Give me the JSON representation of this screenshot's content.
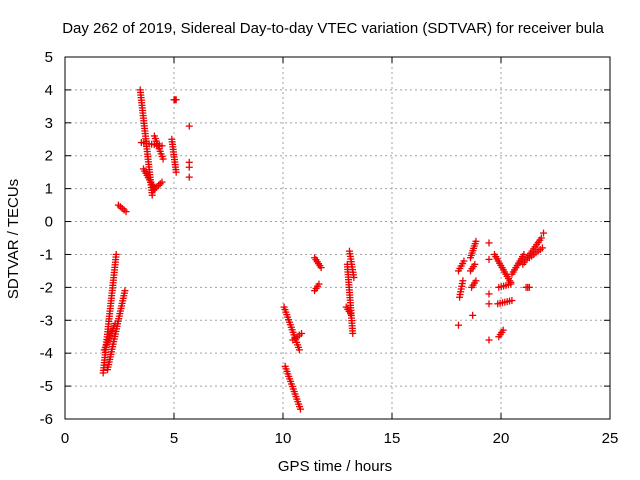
{
  "chart_data": {
    "type": "scatter",
    "title": "Day 262 of 2019, Sidereal Day-to-day VTEC variation (SDTVAR) for receiver bula",
    "xlabel": "GPS time / hours",
    "ylabel": "SDTVAR / TECUs",
    "xlim": [
      0,
      25
    ],
    "ylim": [
      -6,
      5
    ],
    "xticks": [
      0,
      5,
      10,
      15,
      20,
      25
    ],
    "yticks": [
      -6,
      -5,
      -4,
      -3,
      -2,
      -1,
      0,
      1,
      2,
      3,
      4,
      5
    ],
    "xtick_labels": [
      "0",
      "5",
      "10",
      "15",
      "20",
      "25"
    ],
    "ytick_labels": [
      "-6",
      "-5",
      "-4",
      "-3",
      "-2",
      "-1",
      "0",
      "1",
      "2",
      "3",
      "4",
      "5"
    ],
    "grid": true,
    "marker": "plus",
    "series": [
      {
        "name": "SDTVAR",
        "color": "#ee0000",
        "segments": [
          {
            "x": [
              1.75,
              2.35
            ],
            "y": [
              -4.6,
              -1.0
            ]
          },
          {
            "x": [
              1.95,
              2.75
            ],
            "y": [
              -4.5,
              -2.1
            ]
          },
          {
            "x": [
              1.8,
              2.3
            ],
            "y": [
              -3.9,
              -3.1
            ]
          },
          {
            "x": [
              2.45,
              2.8
            ],
            "y": [
              0.5,
              0.3
            ]
          },
          {
            "x": [
              3.45,
              4.0
            ],
            "y": [
              4.0,
              0.8
            ]
          },
          {
            "x": [
              3.5,
              4.45
            ],
            "y": [
              2.4,
              2.3
            ]
          },
          {
            "x": [
              3.6,
              4.1
            ],
            "y": [
              1.6,
              1.0
            ]
          },
          {
            "x": [
              4.05,
              4.45
            ],
            "y": [
              0.95,
              1.2
            ]
          },
          {
            "x": [
              4.1,
              4.5
            ],
            "y": [
              2.6,
              1.9
            ]
          },
          {
            "x": [
              4.9,
              5.1
            ],
            "y": [
              2.5,
              1.5
            ]
          },
          {
            "x": [
              5.0,
              5.1
            ],
            "y": [
              3.7,
              3.7
            ]
          },
          {
            "x": [
              10.05,
              10.75
            ],
            "y": [
              -2.6,
              -3.9
            ]
          },
          {
            "x": [
              10.1,
              10.8
            ],
            "y": [
              -4.4,
              -5.7
            ]
          },
          {
            "x": [
              10.45,
              10.85
            ],
            "y": [
              -3.6,
              -3.4
            ]
          },
          {
            "x": [
              11.45,
              11.75
            ],
            "y": [
              -1.1,
              -1.4
            ]
          },
          {
            "x": [
              11.45,
              11.65
            ],
            "y": [
              -2.1,
              -1.9
            ]
          },
          {
            "x": [
              12.95,
              13.2
            ],
            "y": [
              -1.3,
              -3.4
            ]
          },
          {
            "x": [
              13.05,
              13.25
            ],
            "y": [
              -0.9,
              -1.7
            ]
          },
          {
            "x": [
              12.9,
              13.1
            ],
            "y": [
              -2.6,
              -2.8
            ]
          },
          {
            "x": [
              18.05,
              18.3
            ],
            "y": [
              -1.5,
              -1.2
            ]
          },
          {
            "x": [
              18.1,
              18.25
            ],
            "y": [
              -2.3,
              -1.8
            ]
          },
          {
            "x": [
              18.6,
              18.85
            ],
            "y": [
              -1.1,
              -0.6
            ]
          },
          {
            "x": [
              18.6,
              18.8
            ],
            "y": [
              -1.5,
              -1.3
            ]
          },
          {
            "x": [
              18.65,
              18.85
            ],
            "y": [
              -2.0,
              -1.8
            ]
          },
          {
            "x": [
              19.7,
              20.4
            ],
            "y": [
              -1.0,
              -1.8
            ]
          },
          {
            "x": [
              19.9,
              20.45
            ],
            "y": [
              -2.0,
              -1.9
            ]
          },
          {
            "x": [
              19.85,
              20.5
            ],
            "y": [
              -2.5,
              -2.4
            ]
          },
          {
            "x": [
              19.9,
              20.1
            ],
            "y": [
              -3.5,
              -3.3
            ]
          },
          {
            "x": [
              20.5,
              21.05
            ],
            "y": [
              -1.6,
              -1.0
            ]
          },
          {
            "x": [
              21.0,
              21.85
            ],
            "y": [
              -1.3,
              -0.5
            ]
          },
          {
            "x": [
              21.3,
              21.9
            ],
            "y": [
              -1.1,
              -0.8
            ]
          },
          {
            "x": [
              21.15,
              21.3
            ],
            "y": [
              -2.0,
              -2.0
            ]
          }
        ],
        "points": [
          {
            "x": 5.7,
            "y": 2.9
          },
          {
            "x": 5.7,
            "y": 1.8
          },
          {
            "x": 5.7,
            "y": 1.65
          },
          {
            "x": 5.7,
            "y": 1.35
          },
          {
            "x": 18.05,
            "y": -3.15
          },
          {
            "x": 18.7,
            "y": -2.85
          },
          {
            "x": 19.45,
            "y": -0.65
          },
          {
            "x": 19.45,
            "y": -1.15
          },
          {
            "x": 19.45,
            "y": -2.2
          },
          {
            "x": 19.45,
            "y": -2.5
          },
          {
            "x": 19.45,
            "y": -3.6
          },
          {
            "x": 20.45,
            "y": -1.85
          },
          {
            "x": 21.95,
            "y": -0.35
          }
        ]
      }
    ]
  }
}
